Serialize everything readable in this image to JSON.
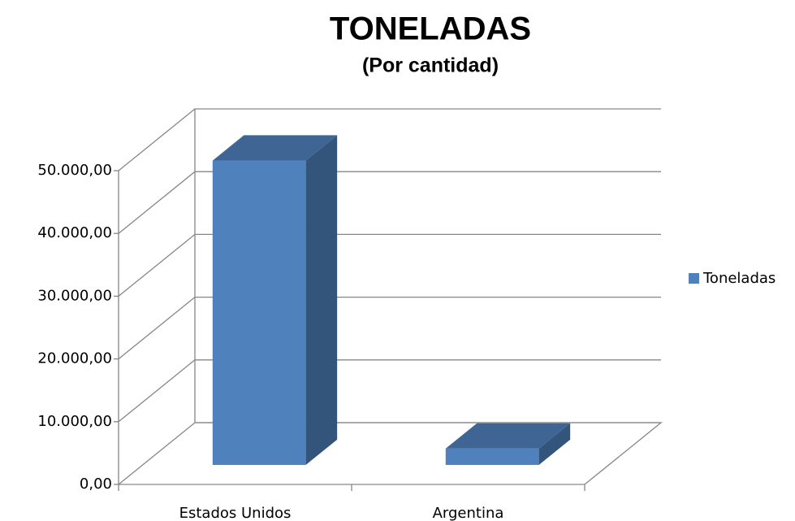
{
  "chart_data": {
    "type": "bar3d",
    "title": "TONELADAS",
    "subtitle": "(Por cantidad)",
    "categories": [
      "Estados Unidos",
      "Argentina"
    ],
    "series": [
      {
        "name": "Toneladas",
        "color": "#4f81bd",
        "values": [
          48500,
          2600
        ]
      }
    ],
    "ylim": [
      0,
      50000
    ],
    "yticks": [
      {
        "value": 0,
        "label": "0,00"
      },
      {
        "value": 10000,
        "label": "10.000,00"
      },
      {
        "value": 20000,
        "label": "20.000,00"
      },
      {
        "value": 30000,
        "label": "30.000,00"
      },
      {
        "value": 40000,
        "label": "40.000,00"
      },
      {
        "value": 50000,
        "label": "50.000,00"
      }
    ],
    "grid": true,
    "legend": "right"
  }
}
